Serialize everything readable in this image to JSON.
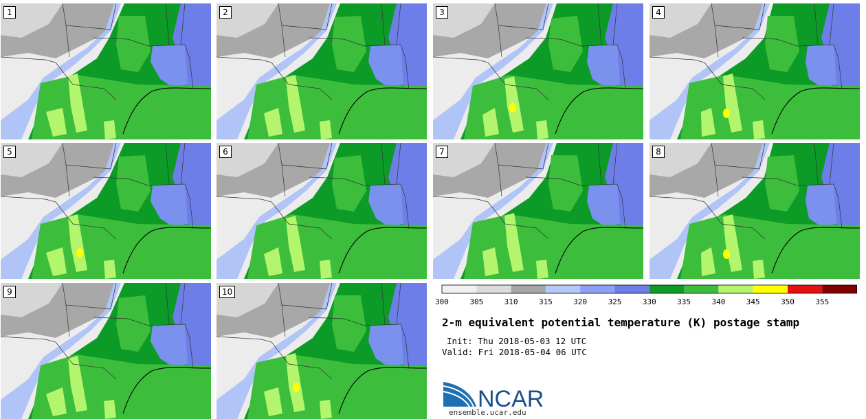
{
  "title": "2-m equivalent potential temperature (K) postage stamp",
  "init": "Init: Thu 2018-05-03 12 UTC",
  "valid": "Valid: Fri 2018-05-04 06 UTC",
  "members": [
    "1",
    "2",
    "3",
    "4",
    "5",
    "6",
    "7",
    "8",
    "9",
    "10"
  ],
  "colorbar": {
    "ticks": [
      "300",
      "305",
      "310",
      "315",
      "320",
      "325",
      "330",
      "335",
      "340",
      "345",
      "350",
      "355"
    ],
    "colors": [
      "#f0f0f0",
      "#dcdcdc",
      "#a6a6a6",
      "#b4c8fa",
      "#8ca0f5",
      "#6e7ee8",
      "#0c9b26",
      "#3cbd3c",
      "#b4f56e",
      "#ffff00",
      "#e61010",
      "#820000"
    ]
  },
  "logo": {
    "text": "NCAR",
    "site": "ensemble.ucar.edu"
  }
}
